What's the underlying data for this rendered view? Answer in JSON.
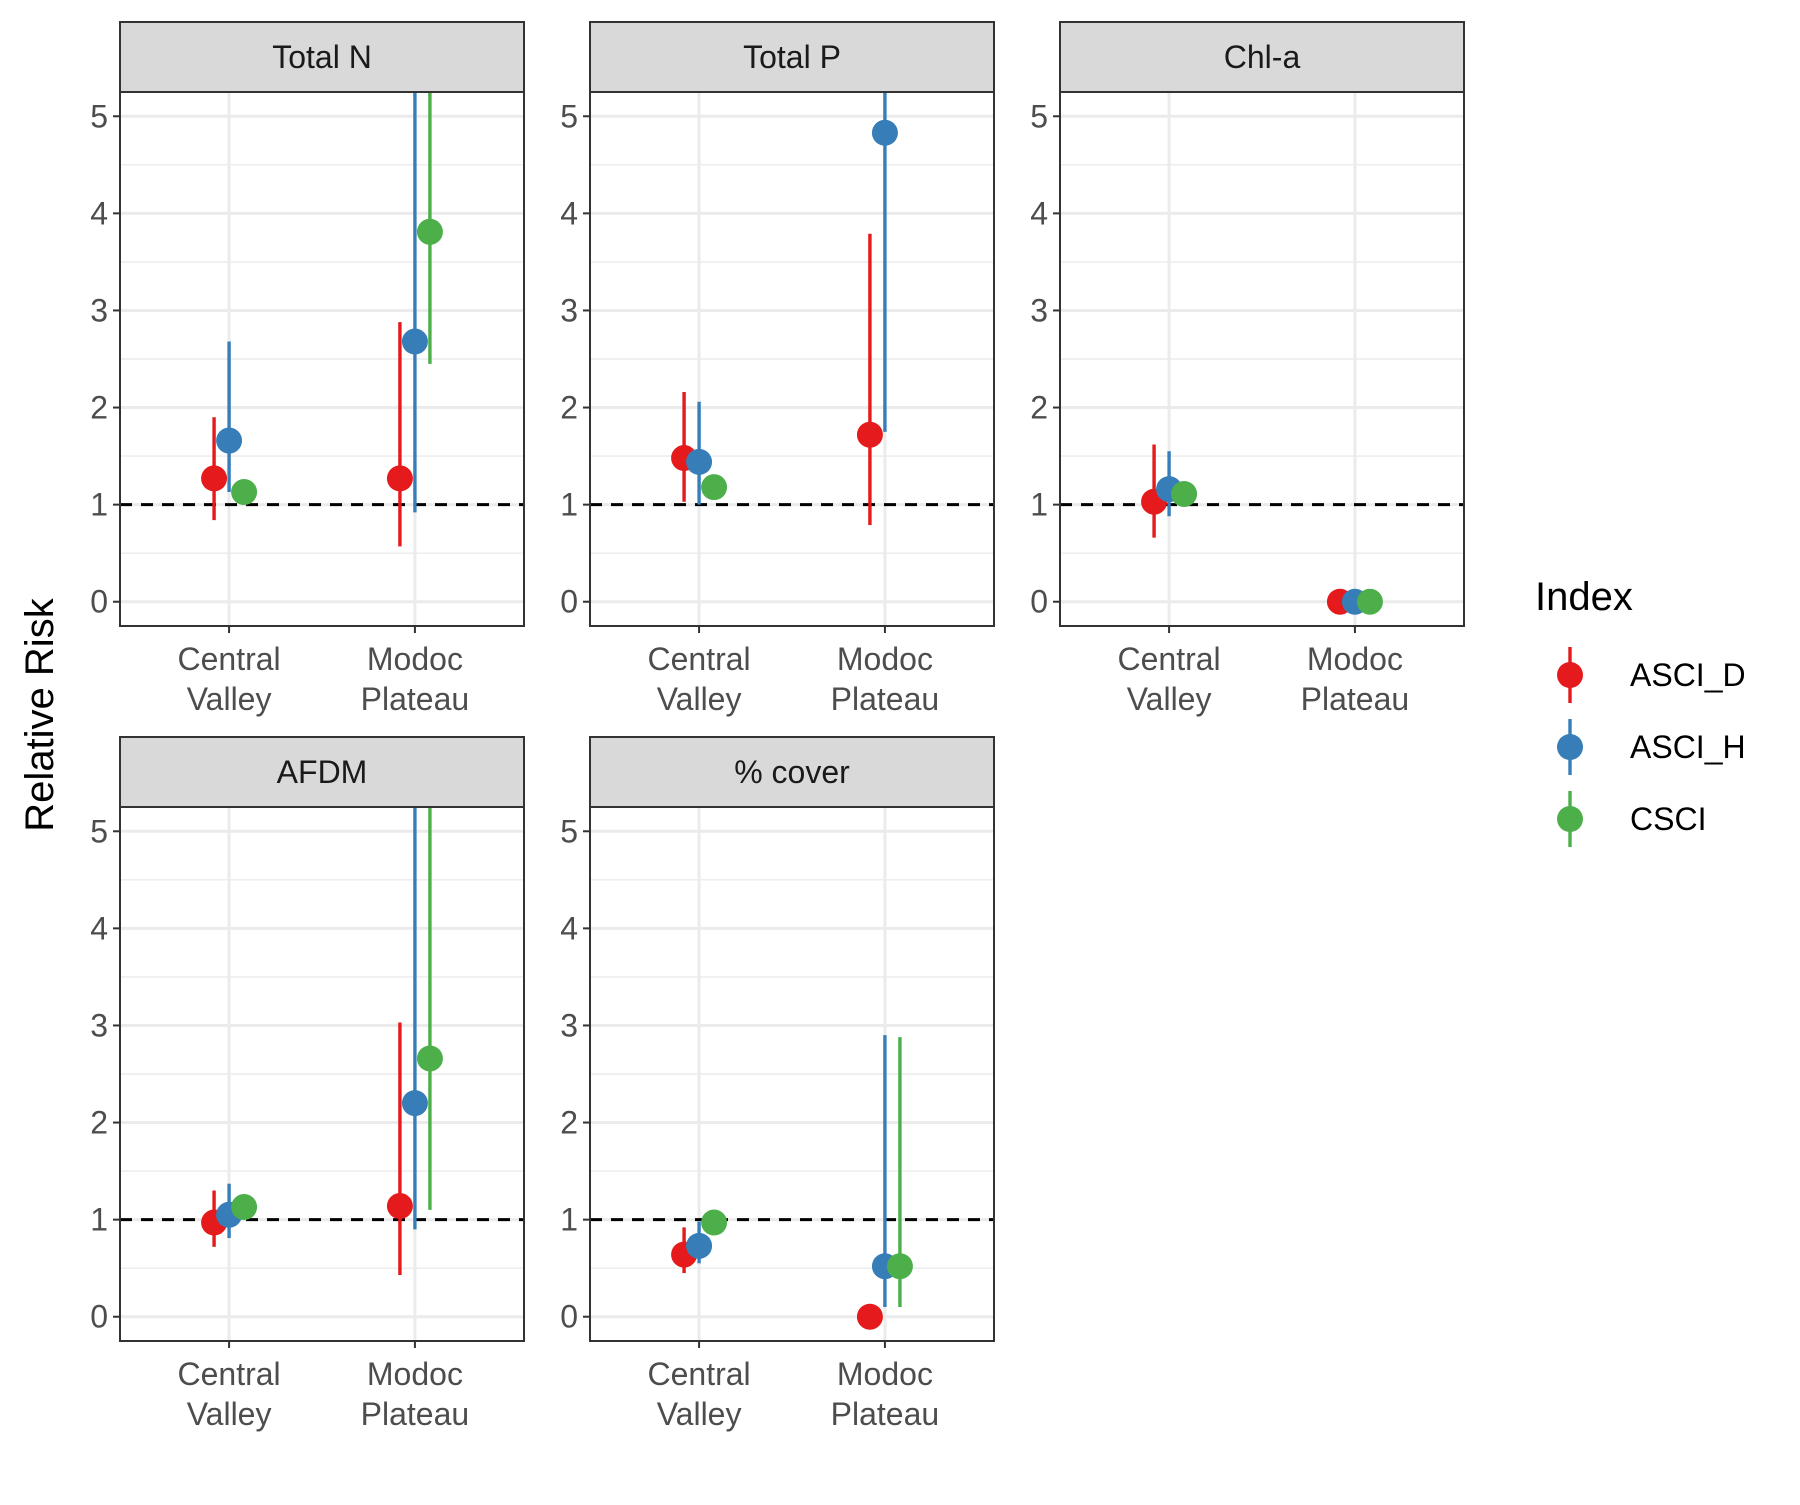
{
  "chart_data": {
    "type": "scatter",
    "subtype": "point-range faceted",
    "ylabel": "Relative Risk",
    "xlabel": "",
    "ylim": [
      -0.25,
      5.25
    ],
    "yticks": [
      0,
      1,
      2,
      3,
      4,
      5
    ],
    "grid": true,
    "reference_line": 1,
    "categories": [
      [
        "Central",
        "Valley"
      ],
      [
        "Modoc",
        "Plateau"
      ]
    ],
    "legend": {
      "title": "Index",
      "placement": "right",
      "entries": [
        "ASCI_D",
        "ASCI_H",
        "CSCI"
      ]
    },
    "colors": {
      "ASCI_D": "#e41a1c",
      "ASCI_H": "#377eb8",
      "CSCI": "#4daf4a"
    },
    "facets": [
      {
        "title": "Total N",
        "series": [
          {
            "name": "ASCI_D",
            "values": [
              1.27,
              1.27
            ],
            "lower": [
              0.84,
              0.57
            ],
            "upper": [
              1.9,
              2.88
            ]
          },
          {
            "name": "ASCI_H",
            "values": [
              1.66,
              2.68
            ],
            "lower": [
              1.13,
              0.92
            ],
            "upper": [
              2.68,
              5.25
            ]
          },
          {
            "name": "CSCI",
            "values": [
              1.13,
              3.81
            ],
            "lower": [
              null,
              2.45
            ],
            "upper": [
              null,
              5.25
            ]
          }
        ]
      },
      {
        "title": "Total P",
        "series": [
          {
            "name": "ASCI_D",
            "values": [
              1.48,
              1.72
            ],
            "lower": [
              1.03,
              0.79
            ],
            "upper": [
              2.16,
              3.79
            ]
          },
          {
            "name": "ASCI_H",
            "values": [
              1.44,
              4.83
            ],
            "lower": [
              1.0,
              1.75
            ],
            "upper": [
              2.06,
              5.25
            ]
          },
          {
            "name": "CSCI",
            "values": [
              1.18,
              null
            ],
            "lower": [
              null,
              null
            ],
            "upper": [
              null,
              null
            ]
          }
        ]
      },
      {
        "title": "Chl-a",
        "series": [
          {
            "name": "ASCI_D",
            "values": [
              1.03,
              0.0
            ],
            "lower": [
              0.66,
              null
            ],
            "upper": [
              1.62,
              null
            ]
          },
          {
            "name": "ASCI_H",
            "values": [
              1.16,
              0.0
            ],
            "lower": [
              0.88,
              null
            ],
            "upper": [
              1.55,
              null
            ]
          },
          {
            "name": "CSCI",
            "values": [
              1.11,
              0.0
            ],
            "lower": [
              null,
              null
            ],
            "upper": [
              null,
              null
            ]
          }
        ]
      },
      {
        "title": "AFDM",
        "series": [
          {
            "name": "ASCI_D",
            "values": [
              0.97,
              1.14
            ],
            "lower": [
              0.72,
              0.43
            ],
            "upper": [
              1.3,
              3.03
            ]
          },
          {
            "name": "ASCI_H",
            "values": [
              1.05,
              2.2
            ],
            "lower": [
              0.81,
              0.9
            ],
            "upper": [
              1.37,
              5.25
            ]
          },
          {
            "name": "CSCI",
            "values": [
              1.13,
              2.66
            ],
            "lower": [
              null,
              1.1
            ],
            "upper": [
              null,
              5.25
            ]
          }
        ]
      },
      {
        "title": "% cover",
        "series": [
          {
            "name": "ASCI_D",
            "values": [
              0.64,
              0.0
            ],
            "lower": [
              0.45,
              null
            ],
            "upper": [
              0.92,
              null
            ]
          },
          {
            "name": "ASCI_H",
            "values": [
              0.73,
              0.52
            ],
            "lower": [
              0.55,
              0.1
            ],
            "upper": [
              0.98,
              2.9
            ]
          },
          {
            "name": "CSCI",
            "values": [
              0.97,
              0.52
            ],
            "lower": [
              null,
              0.1
            ],
            "upper": [
              null,
              2.88
            ]
          }
        ]
      }
    ]
  }
}
